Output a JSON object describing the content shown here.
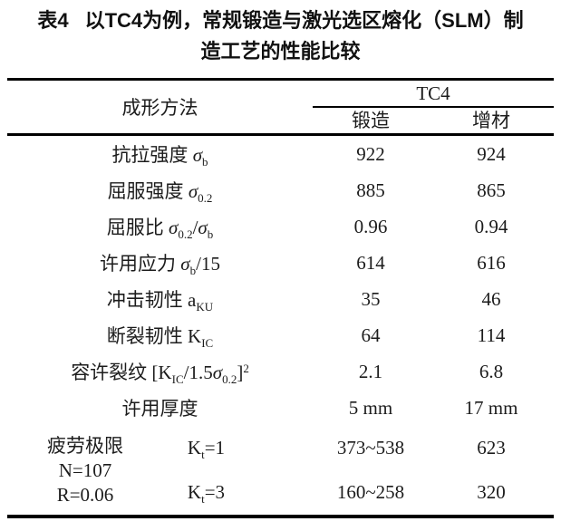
{
  "title": {
    "tag": "表4",
    "line1": "以TC4为例，常规锻造与激光选区熔化（SLM）制",
    "line2": "造工艺的性能比较"
  },
  "colors": {
    "background": "#ffffff",
    "text": "#1c1c1c",
    "rule": "#000000"
  },
  "table": {
    "header": {
      "method_label": "成形方法",
      "group_label": "TC4",
      "col_forging": "锻造",
      "col_additive": "增材"
    },
    "rows": [
      {
        "label": [
          {
            "t": "抗拉强度 "
          },
          {
            "i": "σ"
          },
          {
            "sub": "b"
          }
        ],
        "forging": "922",
        "additive": "924"
      },
      {
        "label": [
          {
            "t": "屈服强度 "
          },
          {
            "i": "σ"
          },
          {
            "sub": "0.2"
          }
        ],
        "forging": "885",
        "additive": "865"
      },
      {
        "label": [
          {
            "t": "屈服比 "
          },
          {
            "i": "σ"
          },
          {
            "sub": "0.2"
          },
          {
            "t": "/"
          },
          {
            "i": "σ"
          },
          {
            "sub": "b"
          }
        ],
        "forging": "0.96",
        "additive": "0.94"
      },
      {
        "label": [
          {
            "t": "许用应力 "
          },
          {
            "i": "σ"
          },
          {
            "sub": "b"
          },
          {
            "t": "/15"
          }
        ],
        "forging": "614",
        "additive": "616"
      },
      {
        "label": [
          {
            "t": "冲击韧性 a"
          },
          {
            "sub": "KU"
          }
        ],
        "forging": "35",
        "additive": "46"
      },
      {
        "label": [
          {
            "t": "断裂韧性 K"
          },
          {
            "sub": "IC"
          }
        ],
        "forging": "64",
        "additive": "114"
      },
      {
        "label": [
          {
            "t": "容许裂纹 [K"
          },
          {
            "sub": "IC"
          },
          {
            "t": "/1.5"
          },
          {
            "i": "σ"
          },
          {
            "sub": "0.2"
          },
          {
            "t": "]"
          },
          {
            "sup": "2"
          }
        ],
        "forging": "2.1",
        "additive": "6.8"
      },
      {
        "label": [
          {
            "t": "许用厚度"
          }
        ],
        "forging": "5 mm",
        "additive": "17 mm"
      }
    ],
    "fatigue": {
      "condition_lines": [
        "疲劳极限",
        "N=107",
        "R=0.06"
      ],
      "rows": [
        {
          "k": [
            {
              "t": "K"
            },
            {
              "sub": "t"
            },
            {
              "t": "=1"
            }
          ],
          "forging": "373~538",
          "additive": "623"
        },
        {
          "k": [
            {
              "t": "K"
            },
            {
              "sub": "t"
            },
            {
              "t": "=3"
            }
          ],
          "forging": "160~258",
          "additive": "320"
        }
      ]
    }
  }
}
